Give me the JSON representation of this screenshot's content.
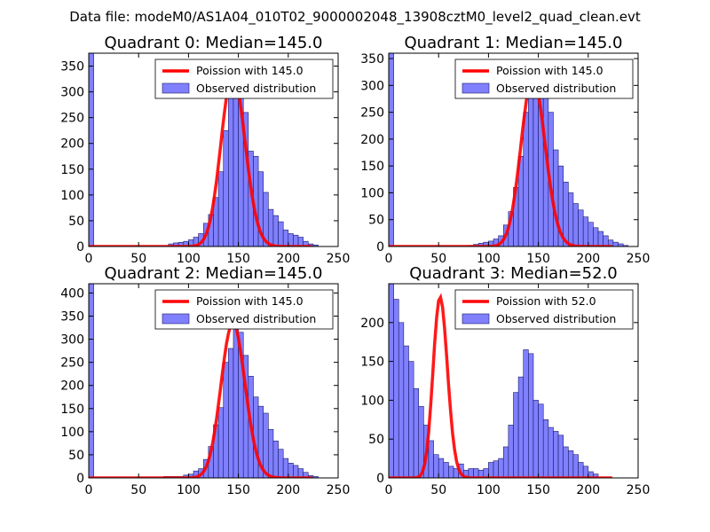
{
  "suptitle": "Data file: modeM0/AS1A04_010T02_9000002048_13908cztM0_level2_quad_clean.evt",
  "colors": {
    "bar_fill": "#8080ff",
    "bar_edge": "#1a1a66",
    "poisson_line": "#ff0000",
    "frame": "#000000"
  },
  "chart_data": [
    {
      "type": "bar",
      "title": "Quadrant 0: Median=145.0",
      "xlim": [
        0,
        250
      ],
      "ylim": [
        0,
        375
      ],
      "xticks": [
        0,
        50,
        100,
        150,
        200,
        250
      ],
      "yticks": [
        0,
        50,
        100,
        150,
        200,
        250,
        300,
        350
      ],
      "bin_width": 5,
      "bins": [
        [
          0,
          375
        ],
        [
          80,
          5
        ],
        [
          85,
          7
        ],
        [
          90,
          8
        ],
        [
          95,
          10
        ],
        [
          100,
          13
        ],
        [
          105,
          18
        ],
        [
          110,
          25
        ],
        [
          115,
          45
        ],
        [
          120,
          62
        ],
        [
          125,
          95
        ],
        [
          130,
          145
        ],
        [
          135,
          225
        ],
        [
          140,
          310
        ],
        [
          145,
          335
        ],
        [
          150,
          300
        ],
        [
          155,
          260
        ],
        [
          160,
          185
        ],
        [
          165,
          175
        ],
        [
          170,
          145
        ],
        [
          175,
          105
        ],
        [
          180,
          72
        ],
        [
          185,
          60
        ],
        [
          190,
          48
        ],
        [
          195,
          32
        ],
        [
          200,
          25
        ],
        [
          205,
          22
        ],
        [
          210,
          18
        ],
        [
          215,
          10
        ],
        [
          220,
          5
        ],
        [
          225,
          3
        ]
      ],
      "poisson": {
        "label": "Poission with 145.0",
        "mean": 145.0
      },
      "legend": {
        "line_label": "Poission with 145.0",
        "bar_label": "Observed distribution",
        "loc": "upper-right"
      }
    },
    {
      "type": "bar",
      "title": "Quadrant 1: Median=145.0",
      "xlim": [
        0,
        250
      ],
      "ylim": [
        0,
        360
      ],
      "xticks": [
        0,
        50,
        100,
        150,
        200,
        250
      ],
      "yticks": [
        0,
        50,
        100,
        150,
        200,
        250,
        300,
        350
      ],
      "bin_width": 5,
      "bins": [
        [
          0,
          360
        ],
        [
          80,
          2
        ],
        [
          85,
          4
        ],
        [
          90,
          6
        ],
        [
          95,
          8
        ],
        [
          100,
          10
        ],
        [
          105,
          14
        ],
        [
          110,
          20
        ],
        [
          115,
          40
        ],
        [
          120,
          65
        ],
        [
          125,
          110
        ],
        [
          130,
          168
        ],
        [
          135,
          250
        ],
        [
          140,
          280
        ],
        [
          145,
          310
        ],
        [
          150,
          315
        ],
        [
          155,
          285
        ],
        [
          160,
          250
        ],
        [
          165,
          180
        ],
        [
          170,
          150
        ],
        [
          175,
          120
        ],
        [
          180,
          100
        ],
        [
          185,
          80
        ],
        [
          190,
          68
        ],
        [
          195,
          55
        ],
        [
          200,
          45
        ],
        [
          205,
          35
        ],
        [
          210,
          28
        ],
        [
          215,
          20
        ],
        [
          220,
          12
        ],
        [
          225,
          8
        ],
        [
          230,
          5
        ],
        [
          235,
          2
        ]
      ],
      "poisson": {
        "label": "Poission with 145.0",
        "mean": 145.0
      },
      "legend": {
        "line_label": "Poission with 145.0",
        "bar_label": "Observed distribution",
        "loc": "upper-right"
      }
    },
    {
      "type": "bar",
      "title": "Quadrant 2: Median=145.0",
      "xlim": [
        0,
        250
      ],
      "ylim": [
        0,
        420
      ],
      "xticks": [
        0,
        50,
        100,
        150,
        200,
        250
      ],
      "yticks": [
        0,
        50,
        100,
        150,
        200,
        250,
        300,
        350,
        400
      ],
      "bin_width": 5,
      "bins": [
        [
          0,
          420
        ],
        [
          75,
          3
        ],
        [
          80,
          3
        ],
        [
          85,
          3
        ],
        [
          90,
          3
        ],
        [
          95,
          6
        ],
        [
          100,
          8
        ],
        [
          105,
          15
        ],
        [
          110,
          20
        ],
        [
          115,
          40
        ],
        [
          120,
          68
        ],
        [
          125,
          115
        ],
        [
          130,
          152
        ],
        [
          135,
          250
        ],
        [
          140,
          280
        ],
        [
          145,
          335
        ],
        [
          150,
          315
        ],
        [
          155,
          265
        ],
        [
          160,
          220
        ],
        [
          165,
          175
        ],
        [
          170,
          155
        ],
        [
          175,
          140
        ],
        [
          180,
          105
        ],
        [
          185,
          80
        ],
        [
          190,
          62
        ],
        [
          195,
          42
        ],
        [
          200,
          32
        ],
        [
          205,
          27
        ],
        [
          210,
          20
        ],
        [
          215,
          12
        ],
        [
          220,
          5
        ],
        [
          225,
          3
        ]
      ],
      "poisson": {
        "label": "Poission with 145.0",
        "mean": 145.0
      },
      "legend": {
        "line_label": "Poission with 145.0",
        "bar_label": "Observed distribution",
        "loc": "upper-right"
      }
    },
    {
      "type": "bar",
      "title": "Quadrant 3: Median=52.0",
      "xlim": [
        0,
        250
      ],
      "ylim": [
        0,
        250
      ],
      "xticks": [
        0,
        50,
        100,
        150,
        200,
        250
      ],
      "yticks": [
        0,
        50,
        100,
        150,
        200
      ],
      "bin_width": 5,
      "bins": [
        [
          0,
          250
        ],
        [
          5,
          230
        ],
        [
          10,
          200
        ],
        [
          15,
          170
        ],
        [
          20,
          150
        ],
        [
          25,
          115
        ],
        [
          30,
          92
        ],
        [
          35,
          68
        ],
        [
          40,
          48
        ],
        [
          45,
          30
        ],
        [
          50,
          25
        ],
        [
          55,
          20
        ],
        [
          60,
          15
        ],
        [
          65,
          12
        ],
        [
          70,
          18
        ],
        [
          75,
          10
        ],
        [
          80,
          12
        ],
        [
          85,
          12
        ],
        [
          90,
          10
        ],
        [
          95,
          12
        ],
        [
          100,
          20
        ],
        [
          105,
          22
        ],
        [
          110,
          25
        ],
        [
          115,
          40
        ],
        [
          120,
          68
        ],
        [
          125,
          110
        ],
        [
          130,
          130
        ],
        [
          135,
          165
        ],
        [
          140,
          160
        ],
        [
          145,
          100
        ],
        [
          150,
          95
        ],
        [
          155,
          75
        ],
        [
          160,
          65
        ],
        [
          165,
          60
        ],
        [
          170,
          55
        ],
        [
          175,
          40
        ],
        [
          180,
          35
        ],
        [
          185,
          30
        ],
        [
          190,
          20
        ],
        [
          195,
          15
        ],
        [
          200,
          8
        ],
        [
          205,
          5
        ]
      ],
      "poisson": {
        "label": "Poission with 52.0",
        "mean": 52.0
      },
      "legend": {
        "line_label": "Poission with 52.0",
        "bar_label": "Observed distribution",
        "loc": "upper-right"
      }
    }
  ]
}
